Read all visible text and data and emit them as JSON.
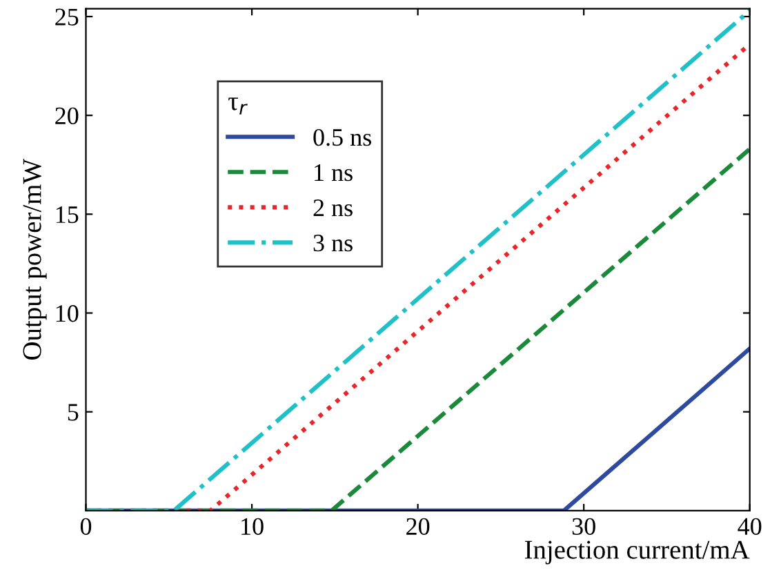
{
  "chart_data": {
    "type": "line",
    "xlabel": "Injection current/mA",
    "ylabel": "Output power/mW",
    "legend_title": "τ$_{r}$",
    "legend": "top left",
    "grid": false,
    "xlim": [
      0,
      40
    ],
    "xticks": [
      0,
      10,
      20,
      30,
      40
    ],
    "ylim": [
      0,
      25.4
    ],
    "yticks": [
      5,
      10,
      15,
      20,
      25
    ],
    "series": [
      {
        "name": "0.5 ns",
        "color": "#2e4a9e",
        "line_style": "solid",
        "x": [
          0,
          28.8,
          40
        ],
        "values": [
          0,
          0,
          8.2
        ]
      },
      {
        "name": "1 ns",
        "color": "#1a8a3a",
        "line_style": "dashed",
        "x": [
          0,
          14.8,
          40
        ],
        "values": [
          0,
          0,
          18.3
        ]
      },
      {
        "name": "2 ns",
        "color": "#e8262a",
        "line_style": "dotted",
        "x": [
          0,
          7.5,
          40
        ],
        "values": [
          0,
          0,
          23.6
        ]
      },
      {
        "name": "3 ns",
        "color": "#1fc0c8",
        "line_style": "dashdot",
        "x": [
          0,
          5.3,
          40
        ],
        "values": [
          0,
          0,
          25.3
        ]
      }
    ]
  }
}
